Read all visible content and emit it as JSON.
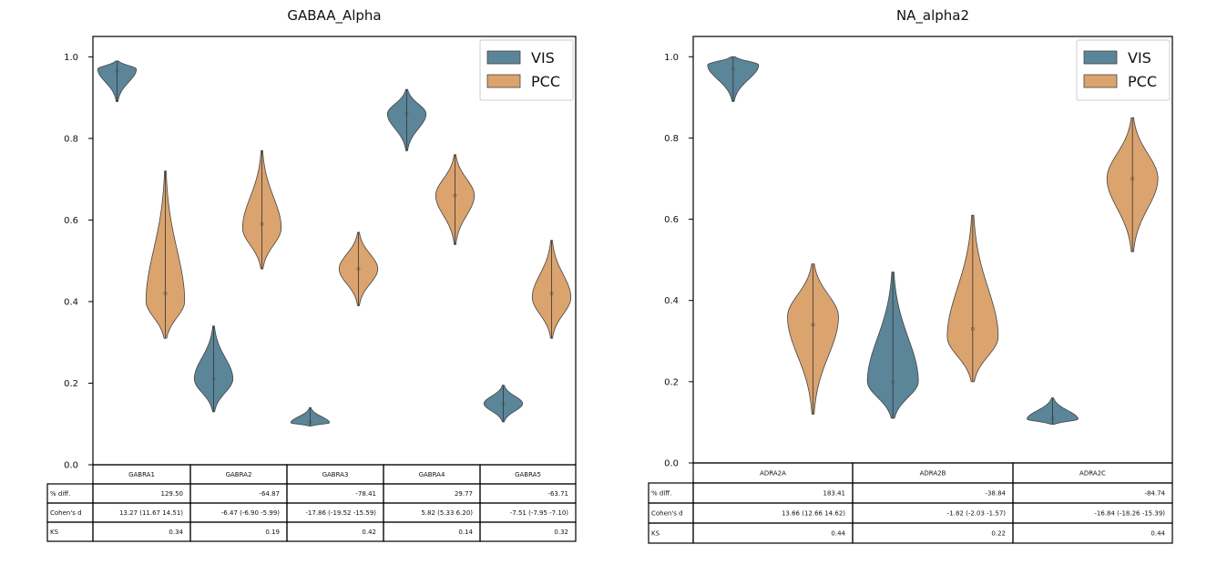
{
  "chart_data": [
    {
      "type": "violin",
      "title": "GABAA_Alpha",
      "ylim": [
        0.0,
        1.05
      ],
      "yticks": [
        "0.0",
        "0.2",
        "0.4",
        "0.6",
        "0.8",
        "1.0"
      ],
      "ytick_values": [
        0.0,
        0.2,
        0.4,
        0.6,
        0.8,
        1.0
      ],
      "categories": [
        "GABRA1",
        "GABRA2",
        "GABRA3",
        "GABRA4",
        "GABRA5"
      ],
      "legend": {
        "position": "top-right",
        "entries": [
          "VIS",
          "PCC"
        ]
      },
      "series": [
        {
          "name": "VIS",
          "color": "#5b8599",
          "violins": [
            {
              "min": 0.89,
              "max": 0.99,
              "median": 0.965,
              "peak": 0.97
            },
            {
              "min": 0.13,
              "max": 0.34,
              "median": 0.21,
              "peak": 0.21
            },
            {
              "min": 0.095,
              "max": 0.14,
              "median": 0.105,
              "peak": 0.103
            },
            {
              "min": 0.77,
              "max": 0.92,
              "median": 0.86,
              "peak": 0.86
            },
            {
              "min": 0.105,
              "max": 0.195,
              "median": 0.15,
              "peak": 0.15
            }
          ]
        },
        {
          "name": "PCC",
          "color": "#dba36e",
          "violins": [
            {
              "min": 0.31,
              "max": 0.72,
              "median": 0.42,
              "peak": 0.4
            },
            {
              "min": 0.48,
              "max": 0.77,
              "median": 0.59,
              "peak": 0.58
            },
            {
              "min": 0.39,
              "max": 0.57,
              "median": 0.48,
              "peak": 0.48
            },
            {
              "min": 0.54,
              "max": 0.76,
              "median": 0.66,
              "peak": 0.66
            },
            {
              "min": 0.31,
              "max": 0.55,
              "median": 0.42,
              "peak": 0.41
            }
          ]
        }
      ],
      "table": {
        "rows": [
          {
            "label": "% diff.",
            "values": [
              "129.50",
              "-64.87",
              "-78.41",
              "29.77",
              "-63.71"
            ]
          },
          {
            "label": "Cohen's d",
            "values": [
              "13.27 (11.67 14.51)",
              "-6.47 (-6.90 -5.99)",
              "-17.86 (-19.52 -15.59)",
              "5.82 (5.33 6.20)",
              "-7.51 (-7.95 -7.10)"
            ]
          },
          {
            "label": "KS",
            "values": [
              "0.34",
              "0.19",
              "0.42",
              "0.14",
              "0.32"
            ]
          }
        ]
      }
    },
    {
      "type": "violin",
      "title": "NA_alpha2",
      "ylim": [
        0.0,
        1.05
      ],
      "yticks": [
        "0.0",
        "0.2",
        "0.4",
        "0.6",
        "0.8",
        "1.0"
      ],
      "ytick_values": [
        0.0,
        0.2,
        0.4,
        0.6,
        0.8,
        1.0
      ],
      "categories": [
        "ADRA2A",
        "ADRA2B",
        "ADRA2C"
      ],
      "legend": {
        "position": "top-right",
        "entries": [
          "VIS",
          "PCC"
        ]
      },
      "series": [
        {
          "name": "VIS",
          "color": "#5b8599",
          "violins": [
            {
              "min": 0.89,
              "max": 1.0,
              "median": 0.97,
              "peak": 0.98
            },
            {
              "min": 0.11,
              "max": 0.47,
              "median": 0.2,
              "peak": 0.2
            },
            {
              "min": 0.095,
              "max": 0.16,
              "median": 0.11,
              "peak": 0.108
            }
          ]
        },
        {
          "name": "PCC",
          "color": "#dba36e",
          "violins": [
            {
              "min": 0.12,
              "max": 0.49,
              "median": 0.34,
              "peak": 0.36
            },
            {
              "min": 0.2,
              "max": 0.61,
              "median": 0.33,
              "peak": 0.31
            },
            {
              "min": 0.52,
              "max": 0.85,
              "median": 0.7,
              "peak": 0.7
            }
          ]
        }
      ],
      "table": {
        "rows": [
          {
            "label": "% diff.",
            "values": [
              "183.41",
              "-38.84",
              "-84.74"
            ]
          },
          {
            "label": "Cohen's d",
            "values": [
              "13.66 (12.66 14.62)",
              "-1.82 (-2.03 -1.57)",
              "-16.84 (-18.26 -15.39)"
            ]
          },
          {
            "label": "KS",
            "values": [
              "0.44",
              "0.22",
              "0.44"
            ]
          }
        ]
      }
    }
  ]
}
